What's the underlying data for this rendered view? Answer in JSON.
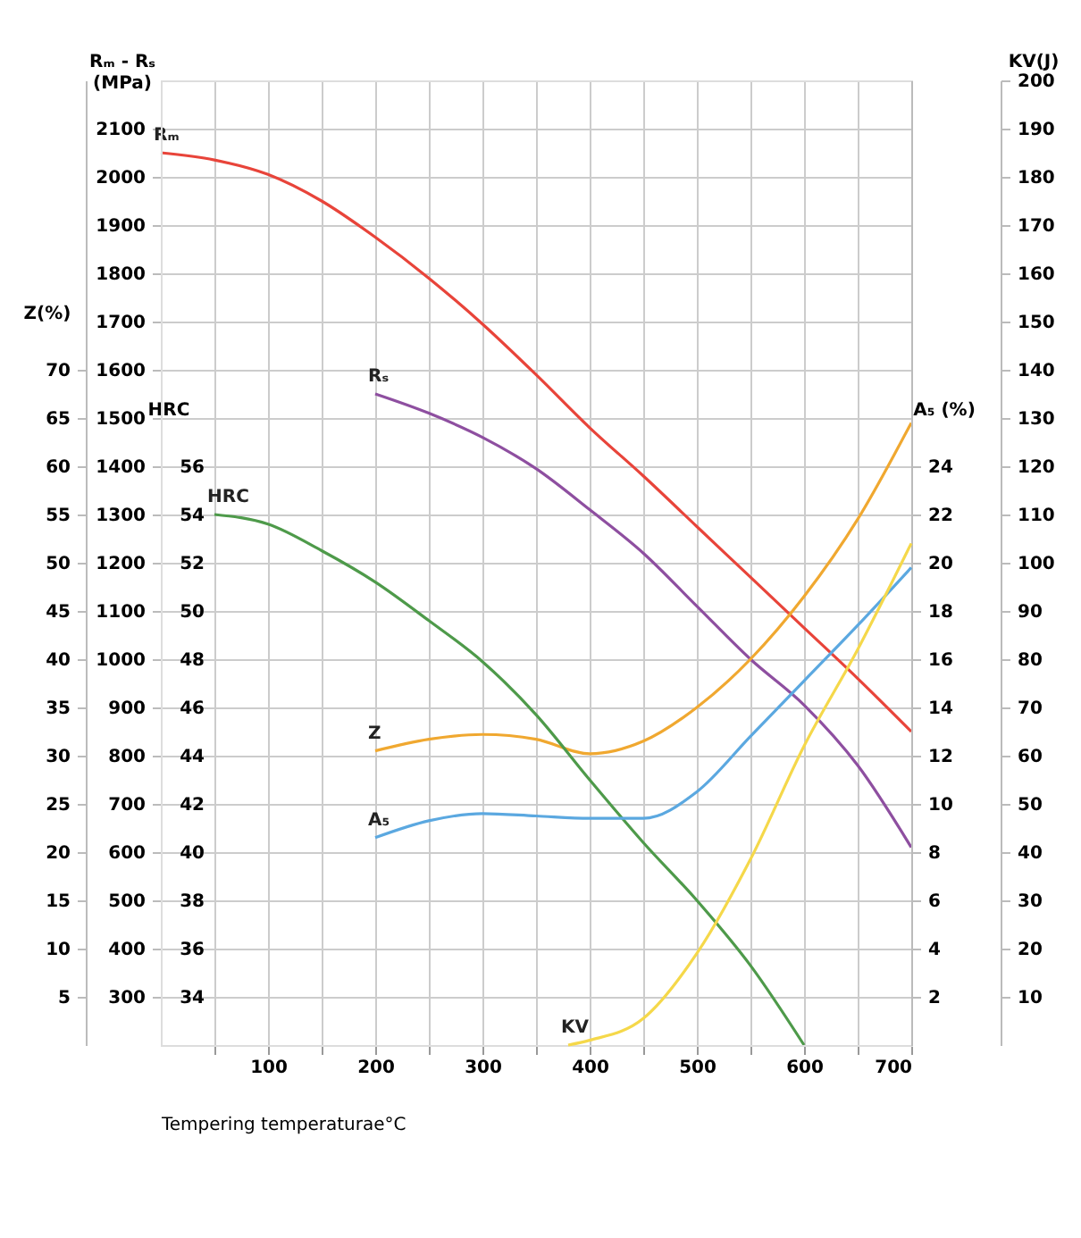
{
  "chart_data": [
    {
      "type": "line",
      "xlabel": "Tempering temperaturae°C",
      "ylabel": "Rₘ - Rₛ\n(MPa)",
      "y2label": "Z(%)",
      "y3label": "HRC",
      "xlim": [
        0,
        700
      ],
      "xticks": [
        {
          "value": 50,
          "label": null
        },
        100,
        {
          "value": 150,
          "label": null
        },
        200,
        {
          "value": 250,
          "label": null
        },
        300,
        {
          "value": 350,
          "label": null
        },
        400,
        {
          "value": 450,
          "label": null
        },
        500,
        {
          "value": 550,
          "label": null
        },
        600,
        {
          "value": 650,
          "label": null
        },
        700
      ],
      "ylim": [
        200,
        2200
      ],
      "yticks": [
        300,
        400,
        500,
        600,
        700,
        800,
        900,
        1000,
        1100,
        1200,
        1300,
        1400,
        1500,
        1600,
        1700,
        1800,
        1900,
        2000,
        2100
      ],
      "y2lim": [
        0,
        100
      ],
      "y2ticks": [
        5,
        10,
        15,
        20,
        25,
        30,
        35,
        40,
        45,
        50,
        55,
        60,
        65,
        70
      ],
      "y3lim": [
        32,
        72
      ],
      "y3ticks": [
        34,
        36,
        38,
        40,
        42,
        44,
        46,
        48,
        50,
        52,
        54,
        56
      ],
      "grid": true,
      "marker": "none",
      "line_style": "solid",
      "series": [
        {
          "name": "Rₘ",
          "axis": "y",
          "color": "#e8443a",
          "x": [
            0,
            50,
            100,
            150,
            200,
            250,
            300,
            350,
            400,
            450,
            500,
            550,
            600,
            650,
            700
          ],
          "values": [
            2050,
            2035,
            2005,
            1950,
            1875,
            1790,
            1695,
            1590,
            1480,
            1380,
            1275,
            1170,
            1065,
            960,
            850
          ]
        },
        {
          "name": "Rₛ",
          "axis": "y",
          "color": "#8e4fa0",
          "x": [
            200,
            250,
            300,
            350,
            400,
            450,
            500,
            550,
            600,
            650,
            700
          ],
          "values": [
            1550,
            1510,
            1460,
            1395,
            1310,
            1220,
            1110,
            1000,
            905,
            780,
            610
          ]
        },
        {
          "name": "HRC",
          "axis": "y3",
          "color": "#4e9a4a",
          "x": [
            50,
            100,
            150,
            200,
            250,
            300,
            350,
            400,
            450,
            500,
            550,
            600
          ],
          "values": [
            54,
            53.6,
            52.5,
            51.2,
            49.6,
            47.9,
            45.7,
            43,
            40.4,
            38,
            35.3,
            32
          ]
        },
        {
          "name": "Z",
          "axis": "y2",
          "color": "#f0a830",
          "x": [
            200,
            250,
            300,
            350,
            400,
            450,
            500,
            550,
            600,
            650,
            700
          ],
          "values": [
            30.5,
            31.7,
            32.2,
            31.7,
            30.2,
            31.5,
            35,
            40,
            46.5,
            54.5,
            64.5
          ]
        }
      ]
    },
    {
      "type": "line",
      "ylabel": "A₅ (%)",
      "y2label": "KV(J)",
      "tick_labels": "y",
      "xlim": [
        0,
        700
      ],
      "ylim": [
        0,
        40
      ],
      "yticks": [
        2,
        4,
        6,
        8,
        10,
        12,
        14,
        16,
        18,
        20,
        22,
        24
      ],
      "y2lim": [
        0,
        200
      ],
      "y2ticks": [
        10,
        20,
        30,
        40,
        50,
        60,
        70,
        80,
        90,
        100,
        110,
        120,
        130,
        140,
        150,
        160,
        170,
        180,
        190,
        200
      ],
      "marker": "none",
      "line_style": "solid",
      "series": [
        {
          "name": "A₅",
          "axis": "y",
          "color": "#5ba8e0",
          "x": [
            200,
            250,
            300,
            350,
            400,
            450,
            500,
            550,
            600,
            650,
            700
          ],
          "values": [
            8.6,
            9.3,
            9.6,
            9.5,
            9.4,
            9.4,
            10.5,
            12.8,
            15.1,
            17.4,
            19.8
          ]
        },
        {
          "name": "KV",
          "axis": "y2",
          "color": "#f5d84a",
          "x": [
            380,
            400,
            450,
            500,
            550,
            600,
            650,
            700
          ],
          "values": [
            0,
            1,
            5.5,
            19,
            38.5,
            62,
            82,
            104
          ]
        }
      ]
    }
  ]
}
